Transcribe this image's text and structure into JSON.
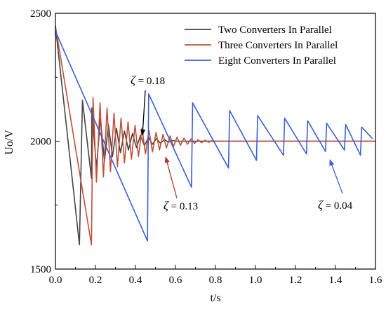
{
  "chart_data": {
    "type": "line",
    "xlabel": "t/s",
    "ylabel": "Uo/V",
    "xlim": [
      0.0,
      1.6
    ],
    "ylim": [
      1500,
      2500
    ],
    "xticks": [
      "0.0",
      "0.2",
      "0.4",
      "0.6",
      "0.8",
      "1.0",
      "1.2",
      "1.4",
      "1.6"
    ],
    "yticks": [
      "1500",
      "2000",
      "2500"
    ],
    "legend_position": "top-right",
    "grid": false,
    "series": [
      {
        "name": "Two Converters In Parallel",
        "color": "#444444",
        "x": [
          0.0,
          0.12,
          0.135,
          0.18,
          0.182,
          0.205,
          0.225,
          0.245,
          0.265,
          0.285,
          0.305,
          0.325,
          0.345,
          0.365,
          0.385,
          0.405,
          0.425,
          0.445,
          0.465,
          0.485,
          0.505,
          0.525,
          0.545,
          0.565,
          0.585,
          0.6,
          1.6
        ],
        "y": [
          2450,
          1595,
          2160,
          1855,
          2130,
          1895,
          2090,
          1920,
          2065,
          1940,
          2050,
          1955,
          2040,
          1965,
          2030,
          1975,
          2022,
          1982,
          2015,
          1988,
          2010,
          1992,
          2006,
          1996,
          2003,
          2000,
          2000
        ]
      },
      {
        "name": "Three Converters In Parallel",
        "color": "#c0503a",
        "x": [
          0.0,
          0.18,
          0.188,
          0.205,
          0.223,
          0.24,
          0.258,
          0.275,
          0.293,
          0.31,
          0.328,
          0.345,
          0.363,
          0.38,
          0.398,
          0.415,
          0.433,
          0.45,
          0.468,
          0.485,
          0.503,
          0.52,
          0.538,
          0.555,
          0.573,
          0.59,
          0.608,
          0.625,
          0.643,
          0.66,
          0.678,
          0.695,
          0.713,
          0.73,
          0.748,
          0.765,
          0.783,
          0.8,
          1.6
        ],
        "y": [
          2450,
          1595,
          2170,
          1840,
          2150,
          1860,
          2130,
          1880,
          2110,
          1900,
          2090,
          1915,
          2075,
          1930,
          2062,
          1940,
          2052,
          1950,
          2042,
          1958,
          2034,
          1966,
          2027,
          1973,
          2021,
          1979,
          2016,
          1984,
          2012,
          1988,
          2009,
          1991,
          2006,
          1994,
          2004,
          1996,
          2002,
          2000,
          2000
        ]
      },
      {
        "name": "Eight Converters In Parallel",
        "color": "#3a5fd9",
        "x": [
          0.0,
          0.46,
          0.466,
          0.68,
          0.686,
          0.865,
          0.871,
          1.005,
          1.011,
          1.14,
          1.146,
          1.255,
          1.261,
          1.35,
          1.356,
          1.445,
          1.451,
          1.525,
          1.531,
          1.585
        ],
        "y": [
          2430,
          1610,
          2185,
          1820,
          2150,
          1895,
          2120,
          1925,
          2100,
          1945,
          2090,
          1950,
          2080,
          1960,
          2070,
          1965,
          2065,
          1945,
          2055,
          2010
        ]
      }
    ],
    "annotations": [
      {
        "symbol": "ζ",
        "text": " = 0.18",
        "color": "#000000",
        "x": 0.41,
        "y": 2015
      },
      {
        "symbol": "ζ",
        "text": " = 0.13",
        "color": "#b03a2e",
        "x": 0.565,
        "y": 1965
      },
      {
        "symbol": "ζ",
        "text": " = 0.04",
        "color": "#3a5fd9",
        "x": 1.365,
        "y": 1940
      }
    ]
  }
}
